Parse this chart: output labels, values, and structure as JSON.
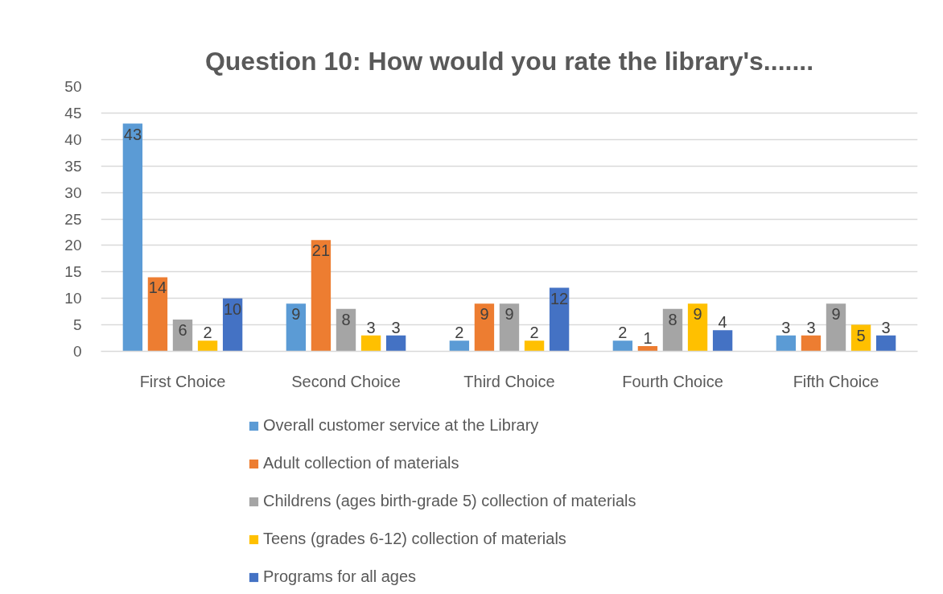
{
  "chart_data": {
    "type": "bar",
    "title": "Question 10: How would you rate the library's.......",
    "categories": [
      "First Choice",
      "Second Choice",
      "Third Choice",
      "Fourth Choice",
      "Fifth Choice"
    ],
    "series": [
      {
        "name": "Overall customer service at the Library",
        "color": "#5b9bd5",
        "values": [
          43,
          9,
          2,
          2,
          3
        ]
      },
      {
        "name": "Adult collection of materials",
        "color": "#ed7d31",
        "values": [
          14,
          21,
          9,
          1,
          3
        ]
      },
      {
        "name": "Childrens (ages birth-grade 5) collection of materials",
        "color": "#a5a5a5",
        "values": [
          6,
          8,
          9,
          8,
          9
        ]
      },
      {
        "name": "Teens (grades 6-12) collection of materials",
        "color": "#ffc000",
        "values": [
          2,
          3,
          2,
          9,
          5
        ]
      },
      {
        "name": "Programs for all ages",
        "color": "#4472c4",
        "values": [
          10,
          3,
          12,
          4,
          3
        ]
      }
    ],
    "ylim": [
      0,
      50
    ],
    "yticks": [
      0,
      5,
      10,
      15,
      20,
      25,
      30,
      35,
      40,
      45,
      50
    ],
    "grid": "y",
    "legend": "bottom",
    "data_labels": true
  }
}
